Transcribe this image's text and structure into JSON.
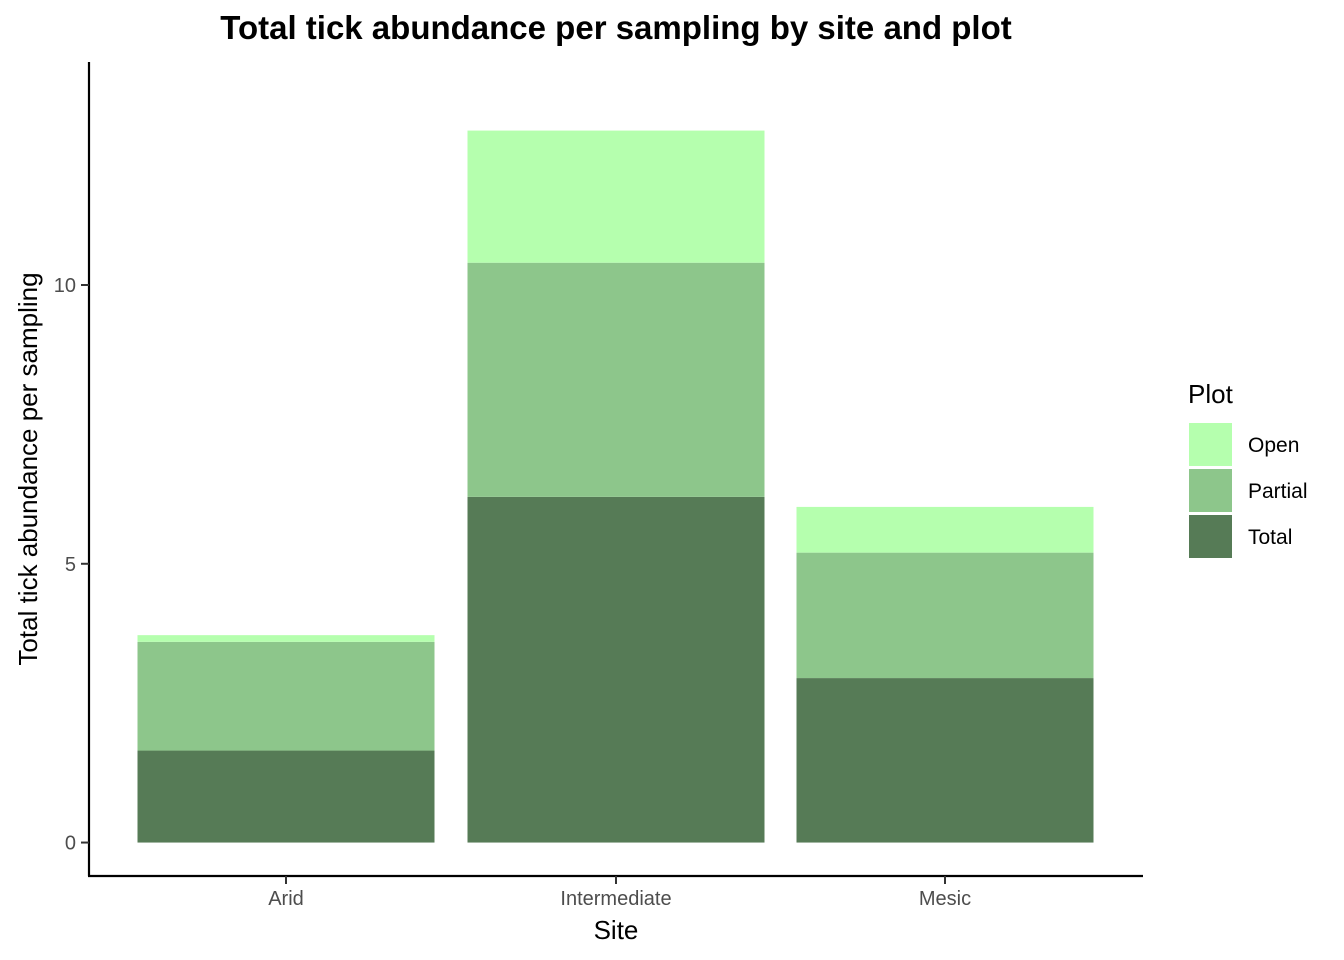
{
  "chart_data": {
    "type": "bar",
    "stacked": true,
    "title": "Total tick abundance per sampling by site and plot",
    "xlabel": "Site",
    "ylabel": "Total tick abundance per sampling",
    "categories": [
      "Arid",
      "Intermediate",
      "Mesic"
    ],
    "series": [
      {
        "name": "Total",
        "color": "#567b56",
        "values": [
          1.65,
          6.2,
          2.95
        ]
      },
      {
        "name": "Partial",
        "color": "#8dc68b",
        "values": [
          1.95,
          4.2,
          2.25
        ]
      },
      {
        "name": "Open",
        "color": "#b5ffae",
        "values": [
          0.12,
          2.37,
          0.82
        ]
      }
    ],
    "stack_order_top_to_bottom": [
      "Open",
      "Partial",
      "Total"
    ],
    "ylim": [
      -0.6,
      14.0
    ],
    "yticks": [
      0,
      5,
      10
    ],
    "ytick_labels": [
      "0",
      "5",
      "10"
    ],
    "legend": {
      "title": "Plot",
      "entries": [
        "Open",
        "Partial",
        "Total"
      ],
      "position": "right"
    },
    "grid": false
  }
}
